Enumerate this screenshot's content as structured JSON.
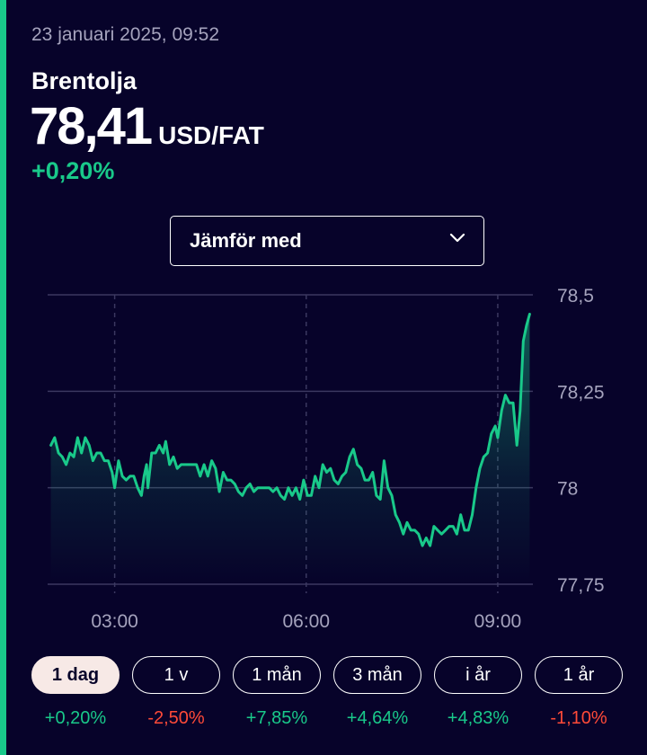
{
  "header": {
    "timestamp": "23 januari 2025, 09:52",
    "instrument": "Brentolja",
    "price": "78,41",
    "unit": "USD/FAT",
    "change": "+0,20%"
  },
  "compare": {
    "label": "Jämför med"
  },
  "colors": {
    "accent": "#19c98a",
    "negative": "#ff4a38",
    "background": "#07032a",
    "active_pill": "#f7e9e6"
  },
  "chart_data": {
    "type": "area",
    "x_unit": "hours",
    "x_range": [
      1.95,
      9.55
    ],
    "ylim": [
      77.75,
      78.5
    ],
    "yticks": [
      78.5,
      78.25,
      78,
      77.75
    ],
    "ytick_labels": [
      "78,5",
      "78,25",
      "78",
      "77,75"
    ],
    "xticks": [
      3,
      6,
      9
    ],
    "xtick_labels": [
      "03:00",
      "06:00",
      "09:00"
    ],
    "grid": true,
    "series": [
      {
        "points": [
          [
            2.0,
            78.11
          ],
          [
            2.06,
            78.13
          ],
          [
            2.12,
            78.09
          ],
          [
            2.18,
            78.08
          ],
          [
            2.24,
            78.06
          ],
          [
            2.3,
            78.09
          ],
          [
            2.36,
            78.08
          ],
          [
            2.42,
            78.13
          ],
          [
            2.48,
            78.09
          ],
          [
            2.54,
            78.13
          ],
          [
            2.6,
            78.11
          ],
          [
            2.66,
            78.07
          ],
          [
            2.72,
            78.09
          ],
          [
            2.78,
            78.09
          ],
          [
            2.84,
            78.07
          ],
          [
            2.9,
            78.07
          ],
          [
            2.96,
            78.04
          ],
          [
            3.0,
            78.0
          ],
          [
            3.06,
            78.07
          ],
          [
            3.12,
            78.03
          ],
          [
            3.18,
            78.02
          ],
          [
            3.24,
            78.03
          ],
          [
            3.3,
            78.03
          ],
          [
            3.36,
            78.0
          ],
          [
            3.42,
            77.98
          ],
          [
            3.46,
            78.03
          ],
          [
            3.5,
            78.06
          ],
          [
            3.52,
            78.0
          ],
          [
            3.58,
            78.09
          ],
          [
            3.64,
            78.09
          ],
          [
            3.7,
            78.11
          ],
          [
            3.76,
            78.09
          ],
          [
            3.8,
            78.12
          ],
          [
            3.86,
            78.06
          ],
          [
            3.92,
            78.08
          ],
          [
            3.98,
            78.05
          ],
          [
            4.04,
            78.06
          ],
          [
            4.1,
            78.06
          ],
          [
            4.16,
            78.06
          ],
          [
            4.22,
            78.06
          ],
          [
            4.28,
            78.06
          ],
          [
            4.34,
            78.03
          ],
          [
            4.4,
            78.06
          ],
          [
            4.46,
            78.03
          ],
          [
            4.52,
            78.07
          ],
          [
            4.58,
            78.05
          ],
          [
            4.64,
            77.99
          ],
          [
            4.7,
            78.04
          ],
          [
            4.76,
            78.02
          ],
          [
            4.82,
            78.02
          ],
          [
            4.88,
            78.01
          ],
          [
            4.94,
            77.99
          ],
          [
            5.0,
            77.98
          ],
          [
            5.06,
            78.0
          ],
          [
            5.12,
            78.01
          ],
          [
            5.18,
            77.99
          ],
          [
            5.24,
            78.0
          ],
          [
            5.3,
            78.0
          ],
          [
            5.36,
            78.0
          ],
          [
            5.42,
            78.0
          ],
          [
            5.48,
            77.99
          ],
          [
            5.54,
            78.0
          ],
          [
            5.6,
            77.98
          ],
          [
            5.66,
            77.97
          ],
          [
            5.72,
            78.0
          ],
          [
            5.78,
            77.98
          ],
          [
            5.84,
            78.0
          ],
          [
            5.9,
            77.97
          ],
          [
            5.96,
            78.02
          ],
          [
            6.02,
            77.98
          ],
          [
            6.08,
            77.98
          ],
          [
            6.14,
            78.03
          ],
          [
            6.2,
            78.0
          ],
          [
            6.26,
            78.06
          ],
          [
            6.32,
            78.04
          ],
          [
            6.38,
            78.05
          ],
          [
            6.44,
            78.02
          ],
          [
            6.5,
            78.01
          ],
          [
            6.56,
            78.03
          ],
          [
            6.62,
            78.04
          ],
          [
            6.68,
            78.08
          ],
          [
            6.74,
            78.1
          ],
          [
            6.8,
            78.06
          ],
          [
            6.86,
            78.05
          ],
          [
            6.92,
            78.02
          ],
          [
            6.98,
            78.02
          ],
          [
            7.04,
            78.04
          ],
          [
            7.1,
            77.98
          ],
          [
            7.16,
            77.97
          ],
          [
            7.22,
            78.07
          ],
          [
            7.28,
            78.0
          ],
          [
            7.34,
            77.98
          ],
          [
            7.4,
            77.93
          ],
          [
            7.46,
            77.91
          ],
          [
            7.52,
            77.88
          ],
          [
            7.58,
            77.91
          ],
          [
            7.64,
            77.89
          ],
          [
            7.7,
            77.89
          ],
          [
            7.76,
            77.88
          ],
          [
            7.82,
            77.85
          ],
          [
            7.88,
            77.87
          ],
          [
            7.94,
            77.85
          ],
          [
            8.0,
            77.9
          ],
          [
            8.06,
            77.89
          ],
          [
            8.12,
            77.88
          ],
          [
            8.18,
            77.89
          ],
          [
            8.24,
            77.9
          ],
          [
            8.3,
            77.9
          ],
          [
            8.36,
            77.88
          ],
          [
            8.42,
            77.93
          ],
          [
            8.48,
            77.89
          ],
          [
            8.54,
            77.89
          ],
          [
            8.6,
            77.93
          ],
          [
            8.66,
            78.0
          ],
          [
            8.72,
            78.05
          ],
          [
            8.78,
            78.08
          ],
          [
            8.84,
            78.09
          ],
          [
            8.9,
            78.14
          ],
          [
            8.96,
            78.16
          ],
          [
            9.0,
            78.13
          ],
          [
            9.06,
            78.2
          ],
          [
            9.12,
            78.24
          ],
          [
            9.18,
            78.22
          ],
          [
            9.24,
            78.22
          ],
          [
            9.3,
            78.11
          ],
          [
            9.35,
            78.2
          ],
          [
            9.4,
            78.38
          ],
          [
            9.45,
            78.42
          ],
          [
            9.5,
            78.45
          ]
        ]
      }
    ]
  },
  "periods": [
    {
      "label": "1 dag",
      "change": "+0,20%",
      "active": true,
      "sign": "pos"
    },
    {
      "label": "1 v",
      "change": "-2,50%",
      "active": false,
      "sign": "neg"
    },
    {
      "label": "1 mån",
      "change": "+7,85%",
      "active": false,
      "sign": "pos"
    },
    {
      "label": "3 mån",
      "change": "+4,64%",
      "active": false,
      "sign": "pos"
    },
    {
      "label": "i år",
      "change": "+4,83%",
      "active": false,
      "sign": "pos"
    },
    {
      "label": "1 år",
      "change": "-1,10%",
      "active": false,
      "sign": "neg"
    }
  ]
}
